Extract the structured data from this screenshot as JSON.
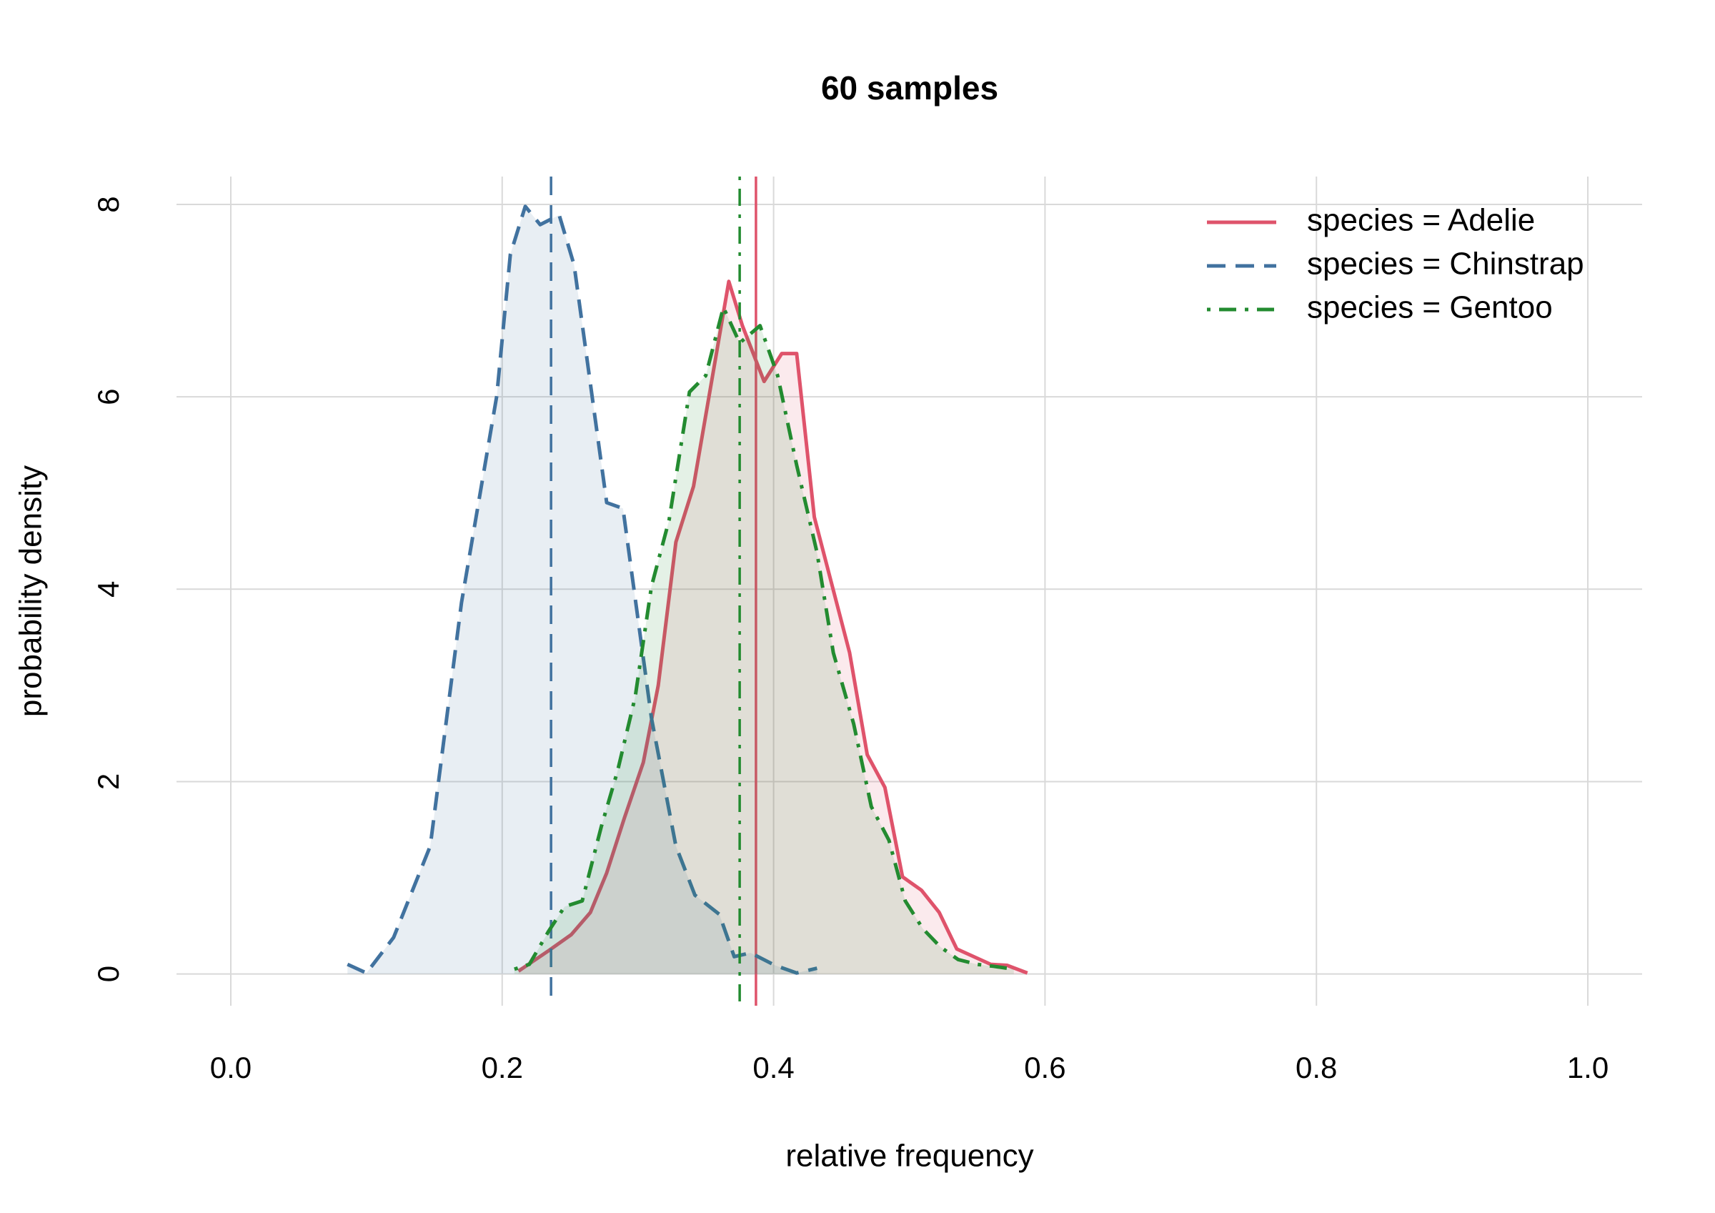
{
  "chart_data": {
    "type": "line",
    "title": "60 samples",
    "x_label": "relative frequency",
    "y_label": "probability density",
    "xlim": [
      -0.04,
      1.04
    ],
    "ylim": [
      -0.33,
      8.29
    ],
    "xticks": [
      {
        "value": 0,
        "label": "0.0"
      },
      0.2,
      0.4,
      0.6,
      0.8,
      {
        "value": 1,
        "label": "1.0"
      }
    ],
    "yticks": [
      0,
      2,
      4,
      6,
      8
    ],
    "grid": true,
    "legend": "top-right",
    "series": [
      {
        "name": "species = Adelie",
        "color": "#df536b",
        "dash": "solid",
        "mean": 0.387,
        "x": [
          0.212,
          0.234,
          0.251,
          0.265,
          0.277,
          0.29,
          0.304,
          0.315,
          0.328,
          0.341,
          0.367,
          0.377,
          0.393,
          0.406,
          0.417,
          0.43,
          0.456,
          0.469,
          0.482,
          0.495,
          0.509,
          0.522,
          0.535,
          0.56,
          0.572,
          0.587
        ],
        "values": [
          0.03,
          0.24,
          0.41,
          0.64,
          1.05,
          1.62,
          2.2,
          3.0,
          4.49,
          5.07,
          7.2,
          6.74,
          6.16,
          6.45,
          6.45,
          4.75,
          3.34,
          2.28,
          1.94,
          1.01,
          0.87,
          0.64,
          0.26,
          0.1,
          0.09,
          0.01
        ]
      },
      {
        "name": "species = Chinstrap",
        "color": "#41729f",
        "dash": "dashed",
        "mean": 0.236,
        "x": [
          0.086,
          0.1,
          0.12,
          0.147,
          0.17,
          0.196,
          0.206,
          0.217,
          0.228,
          0.242,
          0.253,
          0.277,
          0.289,
          0.31,
          0.328,
          0.342,
          0.36,
          0.371,
          0.383,
          0.401,
          0.417,
          0.432
        ],
        "values": [
          0.1,
          0.01,
          0.38,
          1.33,
          3.86,
          6.01,
          7.48,
          7.98,
          7.79,
          7.89,
          7.37,
          4.9,
          4.84,
          2.66,
          1.33,
          0.82,
          0.62,
          0.18,
          0.22,
          0.09,
          0.01,
          0.06
        ]
      },
      {
        "name": "species = Gentoo",
        "color": "#238b30",
        "dash": "dotdash",
        "mean": 0.375,
        "x": [
          0.209,
          0.22,
          0.234,
          0.246,
          0.259,
          0.273,
          0.285,
          0.298,
          0.31,
          0.323,
          0.338,
          0.35,
          0.363,
          0.375,
          0.39,
          0.403,
          0.417,
          0.432,
          0.444,
          0.459,
          0.472,
          0.485,
          0.497,
          0.51,
          0.523,
          0.536,
          0.55,
          0.562,
          0.577
        ],
        "values": [
          0.05,
          0.1,
          0.44,
          0.7,
          0.76,
          1.53,
          2.11,
          2.88,
          4.03,
          4.72,
          6.05,
          6.22,
          6.93,
          6.56,
          6.74,
          6.22,
          5.29,
          4.38,
          3.34,
          2.6,
          1.74,
          1.39,
          0.76,
          0.47,
          0.28,
          0.15,
          0.1,
          0.08,
          0.05
        ]
      }
    ]
  }
}
